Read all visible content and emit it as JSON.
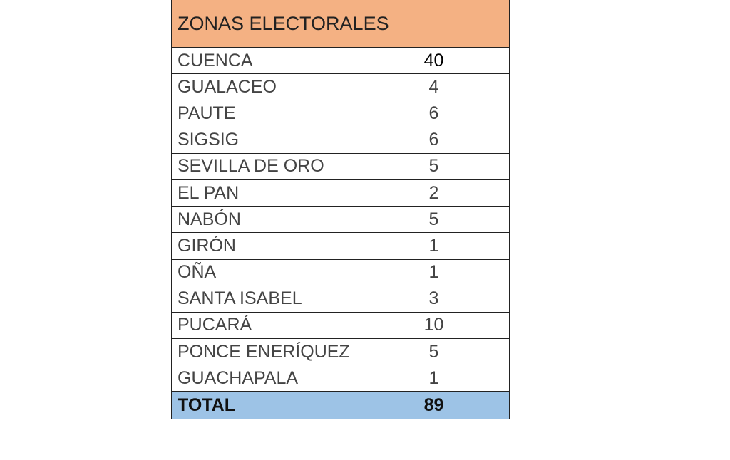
{
  "table": {
    "title": "ZONAS ELECTORALES",
    "rows": [
      [
        "CUENCA",
        40
      ],
      [
        "GUALACEO",
        4
      ],
      [
        "PAUTE",
        6
      ],
      [
        "SIGSIG",
        6
      ],
      [
        "SEVILLA DE ORO",
        5
      ],
      [
        "EL PAN",
        2
      ],
      [
        "NABÓN",
        5
      ],
      [
        "GIRÓN",
        1
      ],
      [
        "OÑA",
        1
      ],
      [
        "SANTA ISABEL",
        3
      ],
      [
        "PUCARÁ",
        10
      ],
      [
        "PONCE ENERÍQUEZ",
        5
      ],
      [
        "GUACHAPALA",
        1
      ]
    ],
    "total": [
      "TOTAL",
      89
    ]
  }
}
